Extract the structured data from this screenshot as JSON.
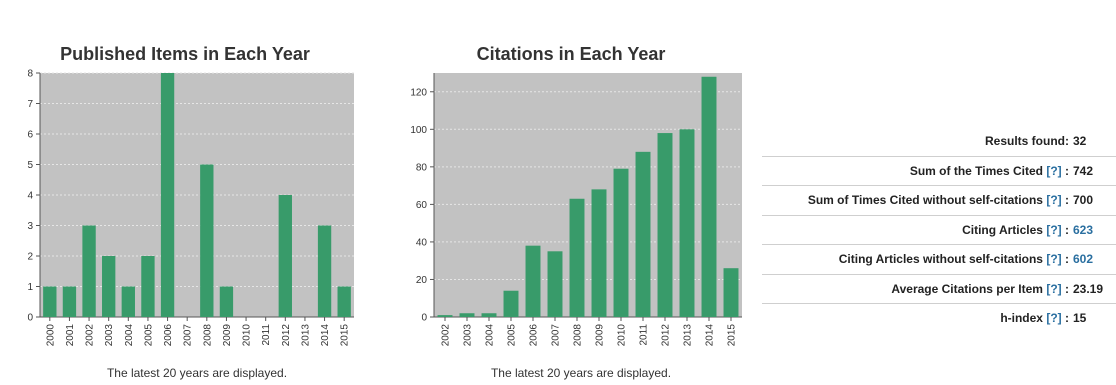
{
  "chart_data": [
    {
      "type": "bar",
      "title": "Published Items in Each Year",
      "categories": [
        "2000",
        "2001",
        "2002",
        "2003",
        "2004",
        "2005",
        "2006",
        "2007",
        "2008",
        "2009",
        "2010",
        "2011",
        "2012",
        "2013",
        "2014",
        "2015"
      ],
      "values": [
        1,
        1,
        3,
        2,
        1,
        2,
        8,
        0,
        5,
        1,
        0,
        0,
        4,
        0,
        3,
        1
      ],
      "ylim": [
        0,
        8
      ],
      "yticks": [
        0,
        1,
        2,
        3,
        4,
        5,
        6,
        7,
        8
      ],
      "grid": true,
      "bar_color": "#389b6a",
      "plot_background": "#c2c2c2",
      "footnote": "The latest 20 years are displayed."
    },
    {
      "type": "bar",
      "title": "Citations in Each Year",
      "categories": [
        "2002",
        "2003",
        "2004",
        "2005",
        "2006",
        "2007",
        "2008",
        "2009",
        "2010",
        "2011",
        "2012",
        "2013",
        "2014",
        "2015"
      ],
      "values": [
        1,
        2,
        2,
        14,
        38,
        35,
        63,
        68,
        79,
        88,
        98,
        100,
        128,
        26
      ],
      "ylim": [
        0,
        130
      ],
      "yticks": [
        0,
        20,
        40,
        60,
        80,
        100,
        120
      ],
      "grid": true,
      "bar_color": "#389b6a",
      "plot_background": "#c2c2c2",
      "footnote": "The latest 20 years are displayed."
    }
  ],
  "stats": [
    {
      "label": "Results found:",
      "help": "",
      "colon": "",
      "value": "32",
      "link": false
    },
    {
      "label": "Sum of the Times Cited",
      "help": "[?]",
      "colon": " :",
      "value": "742",
      "link": false
    },
    {
      "label": "Sum of Times Cited without self-citations",
      "help": "[?]",
      "colon": " :",
      "value": "700",
      "link": false
    },
    {
      "label": "Citing Articles",
      "help": "[?]",
      "colon": " :",
      "value": "623",
      "link": true
    },
    {
      "label": "Citing Articles without self-citations",
      "help": "[?]",
      "colon": " :",
      "value": "602",
      "link": true
    },
    {
      "label": "Average Citations per Item",
      "help": "[?]",
      "colon": " :",
      "value": "23.19",
      "link": false
    },
    {
      "label": "h-index",
      "help": "[?]",
      "colon": " :",
      "value": "15",
      "link": false
    }
  ]
}
